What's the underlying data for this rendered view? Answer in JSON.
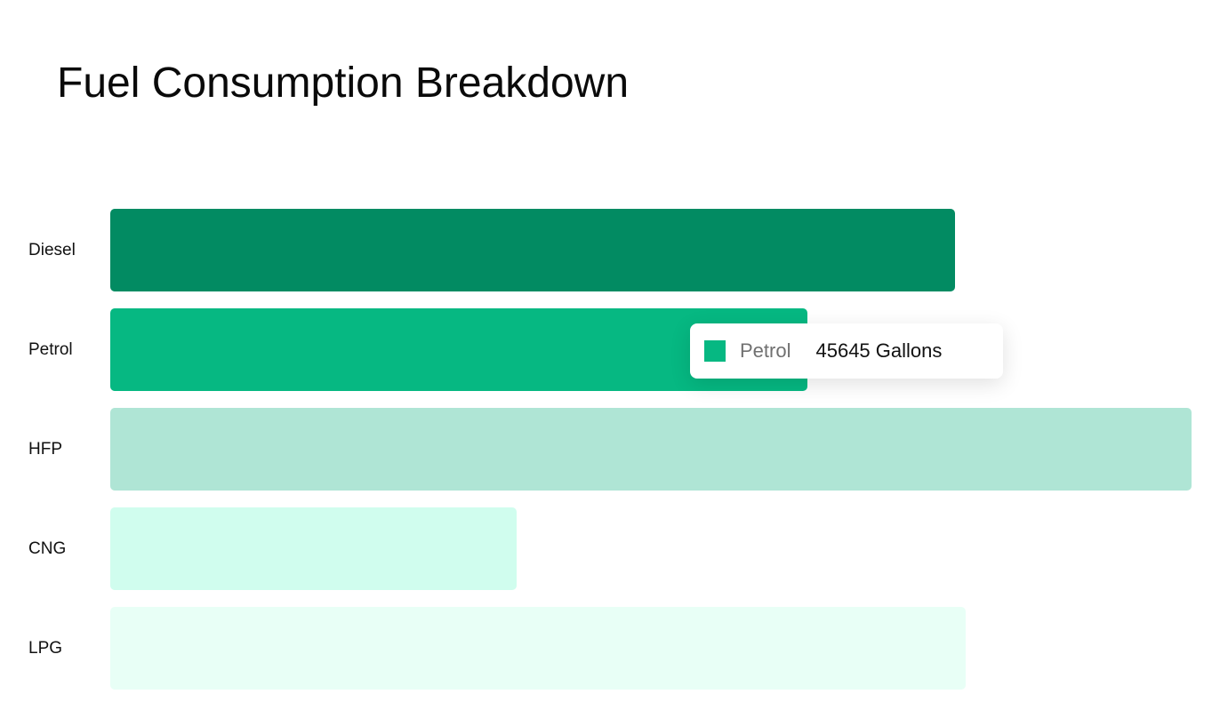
{
  "chart_data": {
    "type": "bar",
    "orientation": "horizontal",
    "title": "Fuel Consumption Breakdown",
    "xlabel": "",
    "ylabel": "",
    "unit": "Gallons",
    "categories": [
      "Diesel",
      "Petrol",
      "HFP",
      "CNG",
      "LPG"
    ],
    "values": [
      55300,
      45645,
      70800,
      26600,
      56000
    ],
    "colors": [
      "#028b62",
      "#06b882",
      "#afe5d5",
      "#d0fdee",
      "#e8fff6"
    ],
    "xlim": [
      0,
      70800
    ],
    "grid": false,
    "legend": "none",
    "tooltip": {
      "series": "Petrol",
      "value": "45645 Gallons",
      "color": "#06b882"
    }
  }
}
